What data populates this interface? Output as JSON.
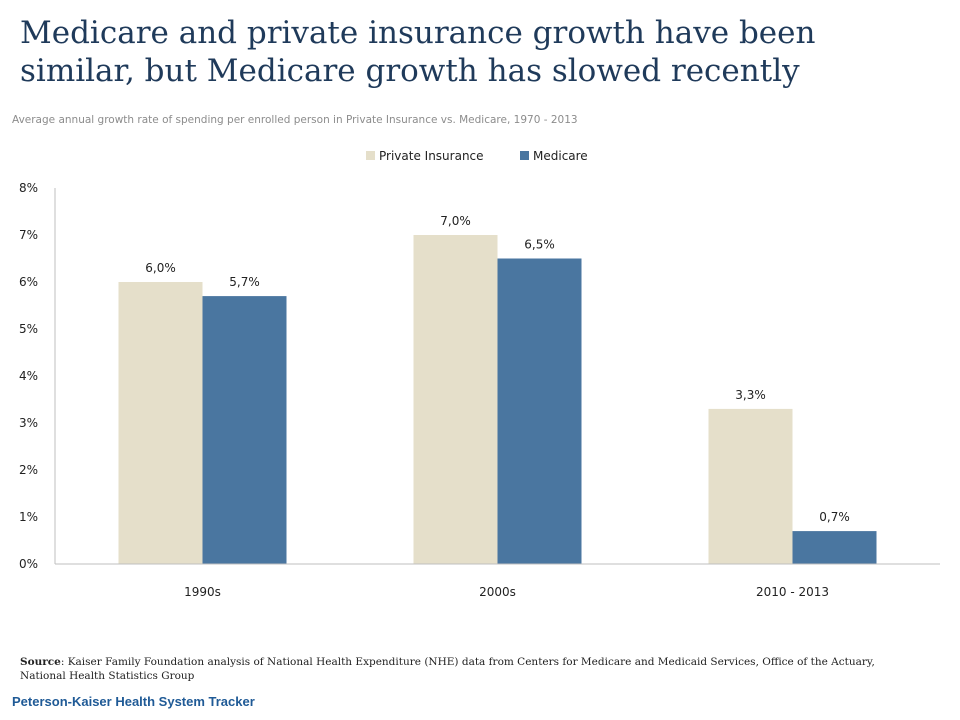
{
  "header": {
    "title_line1": "Medicare and private insurance growth have been",
    "title_line2": "similar, but Medicare growth has slowed recently",
    "subtitle": "Average annual growth rate of spending per enrolled person in Private Insurance vs.  Medicare, 1970 - 2013"
  },
  "chart_data": {
    "type": "bar",
    "categories": [
      "1990s",
      "2000s",
      "2010 - 2013"
    ],
    "series": [
      {
        "name": "Private Insurance",
        "values": [
          6.0,
          7.0,
          3.3
        ],
        "labels": [
          "6,0%",
          "7,0%",
          "3,3%"
        ],
        "color": "#e5dfca"
      },
      {
        "name": "Medicare",
        "values": [
          5.7,
          6.5,
          0.7
        ],
        "labels": [
          "5,7%",
          "6,5%",
          "0,7%"
        ],
        "color": "#4a76a0"
      }
    ],
    "ylim": [
      0,
      8
    ],
    "yticks": [
      0,
      1,
      2,
      3,
      4,
      5,
      6,
      7,
      8
    ],
    "ytick_labels": [
      "0%",
      "1%",
      "2%",
      "3%",
      "4%",
      "5%",
      "6%",
      "7%",
      "8%"
    ],
    "grid": false,
    "legend_position": "top-center"
  },
  "footer": {
    "source_label": "Source",
    "source_text": ": Kaiser Family Foundation analysis of National Health Expenditure (NHE) data from Centers for Medicare and Medicaid Services, Office of the Actuary, National Health Statistics Group",
    "brand": "Peterson-Kaiser Health System Tracker"
  }
}
